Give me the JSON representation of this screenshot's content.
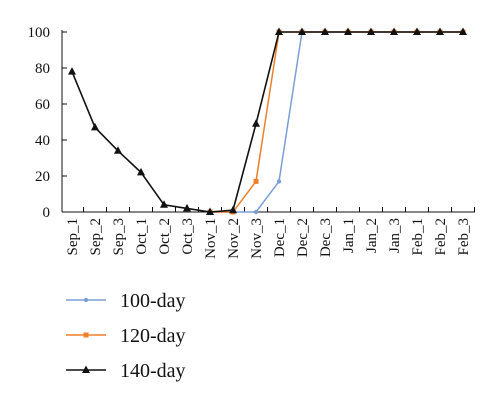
{
  "chart_data": {
    "type": "line",
    "categories": [
      "Sep_1",
      "Sep_2",
      "Sep_3",
      "Oct_1",
      "Oct_2",
      "Oct_3",
      "Nov_1",
      "Nov_2",
      "Nov_3",
      "Dec_1",
      "Dec_2",
      "Dec_3",
      "Jan_1",
      "Jan_2",
      "Jan_3",
      "Feb_1",
      "Feb_2",
      "Feb_3"
    ],
    "series": [
      {
        "name": "100-day",
        "color": "#7b9fd4",
        "marker": "circle",
        "values": [
          null,
          null,
          null,
          null,
          null,
          null,
          0,
          0,
          0,
          17,
          100,
          100,
          100,
          100,
          100,
          100,
          100,
          100
        ]
      },
      {
        "name": "120-day",
        "color": "#f07f2b",
        "marker": "square",
        "values": [
          null,
          null,
          null,
          null,
          null,
          null,
          0,
          0,
          17,
          100,
          100,
          100,
          100,
          100,
          100,
          100,
          100,
          100
        ]
      },
      {
        "name": "140-day",
        "color": "#111111",
        "marker": "triangle",
        "values": [
          78,
          47,
          34,
          22,
          4,
          2,
          0,
          1,
          49,
          100,
          100,
          100,
          100,
          100,
          100,
          100,
          100,
          100
        ]
      }
    ],
    "ylim": [
      0,
      100
    ],
    "yticks": [
      0,
      20,
      40,
      60,
      80,
      100
    ],
    "grid": false
  }
}
